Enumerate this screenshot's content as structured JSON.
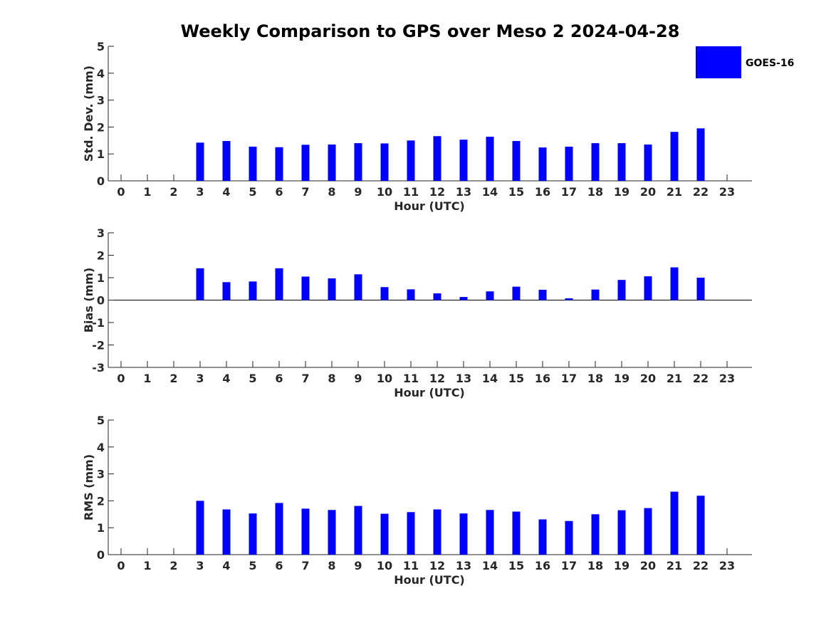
{
  "title": "Weekly Comparison to GPS over Meso 2 2024-04-28",
  "colors": {
    "bar": "#0000ff",
    "axis": "#262626"
  },
  "legend": {
    "label": "GOES-16",
    "position": "top-right"
  },
  "chart_data": [
    {
      "type": "bar",
      "name": "std-dev",
      "ylabel": "Std. Dev. (mm)",
      "xlabel": "Hour (UTC)",
      "ylim": [
        0,
        5
      ],
      "yticks": [
        "0",
        "1",
        "2",
        "3",
        "4",
        "5"
      ],
      "categories": [
        "0",
        "1",
        "2",
        "3",
        "4",
        "5",
        "6",
        "7",
        "8",
        "9",
        "10",
        "11",
        "12",
        "13",
        "14",
        "15",
        "16",
        "17",
        "18",
        "19",
        "20",
        "21",
        "22",
        "23"
      ],
      "series": [
        {
          "name": "GOES-16",
          "values": [
            null,
            null,
            null,
            1.42,
            1.48,
            1.27,
            1.25,
            1.34,
            1.35,
            1.4,
            1.39,
            1.5,
            1.66,
            1.53,
            1.64,
            1.48,
            1.24,
            1.27,
            1.4,
            1.4,
            1.35,
            1.82,
            1.95,
            null
          ]
        }
      ]
    },
    {
      "type": "bar",
      "name": "bias",
      "ylabel": "Bias (mm)",
      "xlabel": "Hour (UTC)",
      "ylim": [
        -3,
        3
      ],
      "yticks": [
        "-3",
        "-2",
        "-1",
        "0",
        "1",
        "2",
        "3"
      ],
      "categories": [
        "0",
        "1",
        "2",
        "3",
        "4",
        "5",
        "6",
        "7",
        "8",
        "9",
        "10",
        "11",
        "12",
        "13",
        "14",
        "15",
        "16",
        "17",
        "18",
        "19",
        "20",
        "21",
        "22",
        "23"
      ],
      "series": [
        {
          "name": "GOES-16",
          "values": [
            null,
            null,
            null,
            1.42,
            0.8,
            0.83,
            1.42,
            1.05,
            0.97,
            1.15,
            0.58,
            0.48,
            0.3,
            0.14,
            0.39,
            0.6,
            0.46,
            0.08,
            0.47,
            0.9,
            1.06,
            1.46,
            1.0,
            null
          ]
        }
      ]
    },
    {
      "type": "bar",
      "name": "rms",
      "ylabel": "RMS (mm)",
      "xlabel": "Hour (UTC)",
      "ylim": [
        0,
        5
      ],
      "yticks": [
        "0",
        "1",
        "2",
        "3",
        "4",
        "5"
      ],
      "categories": [
        "0",
        "1",
        "2",
        "3",
        "4",
        "5",
        "6",
        "7",
        "8",
        "9",
        "10",
        "11",
        "12",
        "13",
        "14",
        "15",
        "16",
        "17",
        "18",
        "19",
        "20",
        "21",
        "22",
        "23"
      ],
      "series": [
        {
          "name": "GOES-16",
          "values": [
            null,
            null,
            null,
            2.0,
            1.68,
            1.53,
            1.92,
            1.71,
            1.66,
            1.81,
            1.52,
            1.58,
            1.68,
            1.53,
            1.66,
            1.6,
            1.31,
            1.25,
            1.5,
            1.65,
            1.73,
            2.34,
            2.19,
            null
          ]
        }
      ]
    }
  ]
}
